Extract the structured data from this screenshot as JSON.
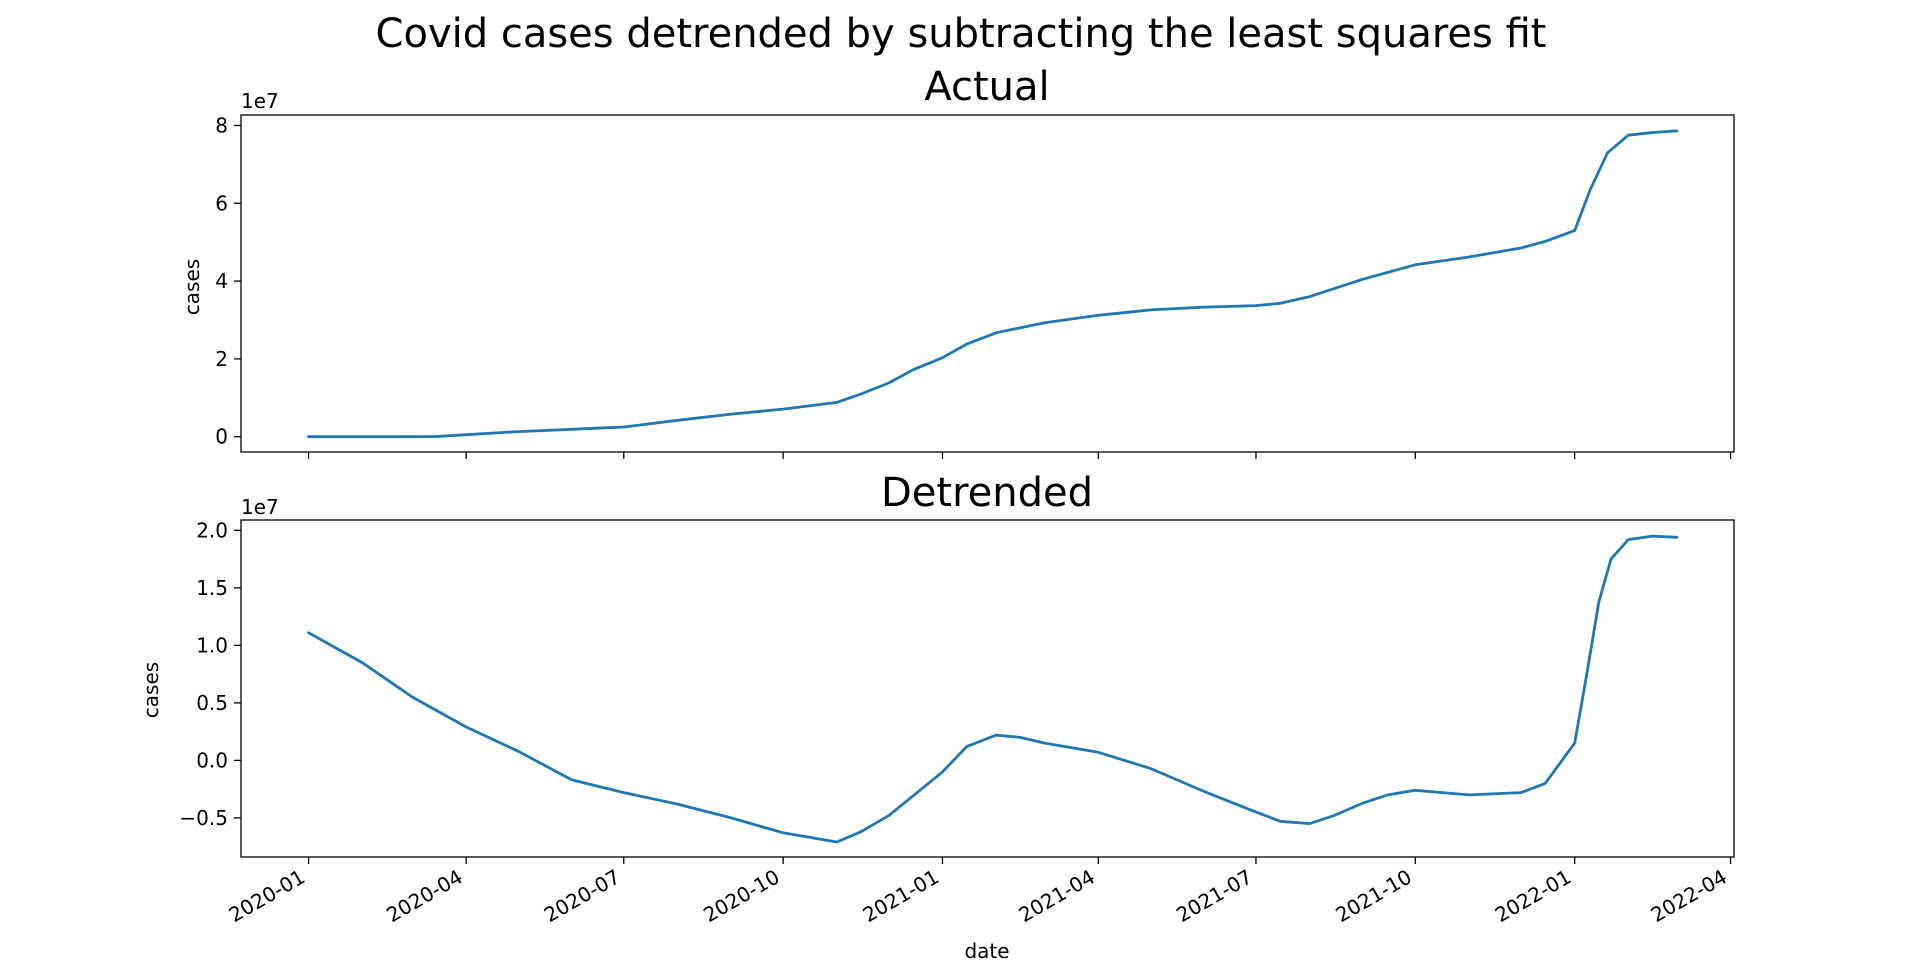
{
  "chart_data": {
    "suptitle": "Covid cases detrended by subtracting the least squares fit",
    "xlabel": "date",
    "x_ticks": [
      "2020-01",
      "2020-04",
      "2020-07",
      "2020-10",
      "2021-01",
      "2021-04",
      "2021-07",
      "2021-10",
      "2022-01",
      "2022-04"
    ],
    "x_range": [
      "2019-11-23",
      "2022-04-03"
    ],
    "line_color": "#1f77b4",
    "subplots": [
      {
        "type": "line",
        "title": "Actual",
        "ylabel": "cases",
        "offset_label": "1e7",
        "ylim": [
          -0.394,
          8.27
        ],
        "y_ticks": [
          0,
          2,
          4,
          6,
          8
        ],
        "x_ticklabels_visible": false,
        "series": [
          {
            "x": [
              "2020-01-01",
              "2020-02-01",
              "2020-03-01",
              "2020-03-15",
              "2020-04-01",
              "2020-05-01",
              "2020-06-01",
              "2020-07-01",
              "2020-08-01",
              "2020-09-01",
              "2020-10-01",
              "2020-11-01",
              "2020-11-15",
              "2020-12-01",
              "2020-12-15",
              "2021-01-01",
              "2021-01-15",
              "2021-02-01",
              "2021-03-01",
              "2021-04-01",
              "2021-05-01",
              "2021-06-01",
              "2021-07-01",
              "2021-07-15",
              "2021-08-01",
              "2021-09-01",
              "2021-10-01",
              "2021-11-01",
              "2021-12-01",
              "2021-12-15",
              "2022-01-01",
              "2022-01-10",
              "2022-01-20",
              "2022-02-01",
              "2022-02-15",
              "2022-03-01"
            ],
            "values": [
              0.0,
              0.0,
              0.0,
              0.005,
              0.05,
              0.13,
              0.19,
              0.25,
              0.42,
              0.58,
              0.71,
              0.88,
              1.1,
              1.38,
              1.72,
              2.03,
              2.38,
              2.67,
              2.93,
              3.12,
              3.26,
              3.33,
              3.37,
              3.43,
              3.6,
              4.05,
              4.42,
              4.62,
              4.85,
              5.02,
              5.3,
              6.35,
              7.3,
              7.75,
              7.82,
              7.86
            ]
          }
        ]
      },
      {
        "type": "line",
        "title": "Detrended",
        "ylabel": "cases",
        "offset_label": "1e7",
        "ylim": [
          -0.84,
          2.09
        ],
        "y_ticks": [
          -0.5,
          0.0,
          0.5,
          1.0,
          1.5,
          2.0
        ],
        "y_tick_labels": [
          "−0.5",
          "0.0",
          "0.5",
          "1.0",
          "1.5",
          "2.0"
        ],
        "x_ticklabels_visible": true,
        "series": [
          {
            "x": [
              "2020-01-01",
              "2020-02-01",
              "2020-03-01",
              "2020-04-01",
              "2020-05-01",
              "2020-06-01",
              "2020-07-01",
              "2020-08-01",
              "2020-09-01",
              "2020-10-01",
              "2020-11-01",
              "2020-11-15",
              "2020-12-01",
              "2021-01-01",
              "2021-01-15",
              "2021-02-01",
              "2021-02-15",
              "2021-03-01",
              "2021-04-01",
              "2021-05-01",
              "2021-06-01",
              "2021-07-01",
              "2021-07-15",
              "2021-08-01",
              "2021-08-15",
              "2021-09-01",
              "2021-09-15",
              "2021-10-01",
              "2021-11-01",
              "2021-12-01",
              "2021-12-15",
              "2022-01-01",
              "2022-01-08",
              "2022-01-15",
              "2022-01-22",
              "2022-02-01",
              "2022-02-15",
              "2022-03-01"
            ],
            "values": [
              1.11,
              0.85,
              0.55,
              0.29,
              0.08,
              -0.17,
              -0.28,
              -0.38,
              -0.5,
              -0.63,
              -0.71,
              -0.62,
              -0.48,
              -0.1,
              0.12,
              0.22,
              0.2,
              0.15,
              0.07,
              -0.07,
              -0.27,
              -0.45,
              -0.53,
              -0.55,
              -0.48,
              -0.37,
              -0.3,
              -0.26,
              -0.3,
              -0.28,
              -0.2,
              0.15,
              0.75,
              1.38,
              1.75,
              1.92,
              1.95,
              1.94
            ]
          }
        ]
      }
    ]
  }
}
